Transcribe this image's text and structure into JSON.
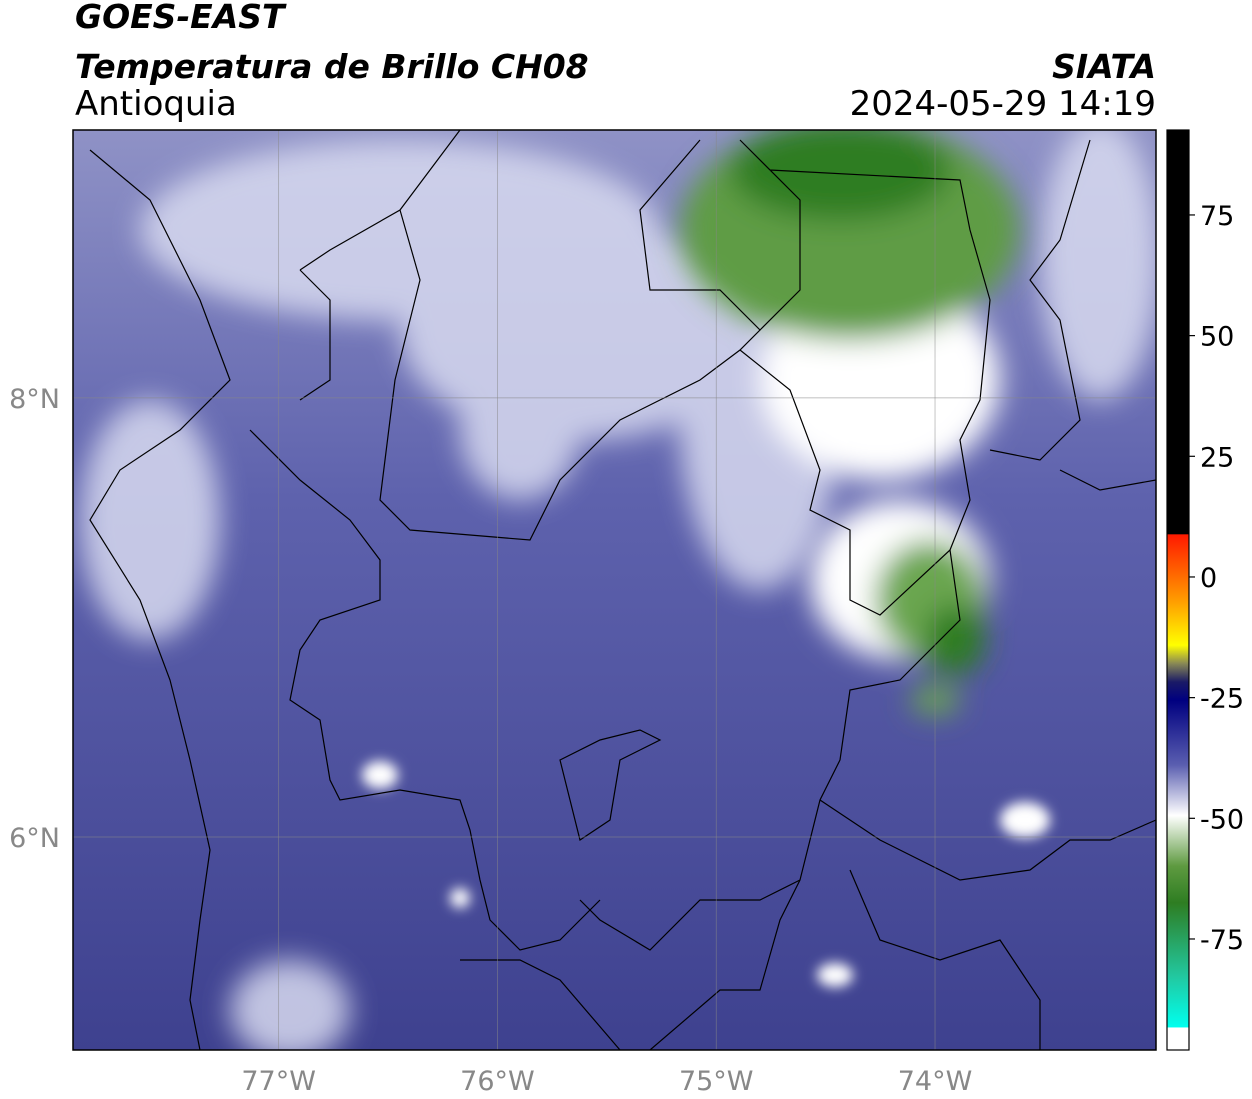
{
  "header": {
    "title": "GOES-EAST",
    "subtitle": "Temperatura de Brillo CH08",
    "region": "Antioquia",
    "source": "SIATA",
    "datetime": "2024-05-29 14:19"
  },
  "map": {
    "xlim": [
      -77.94,
      -72.99
    ],
    "ylim": [
      5.03,
      9.22
    ],
    "xticks": [
      {
        "value": -77,
        "label": "77°W"
      },
      {
        "value": -76,
        "label": "76°W"
      },
      {
        "value": -75,
        "label": "75°W"
      },
      {
        "value": -74,
        "label": "74°W"
      }
    ],
    "yticks": [
      {
        "value": 6,
        "label": "6°N"
      },
      {
        "value": 8,
        "label": "8°N"
      }
    ],
    "grid": true
  },
  "colorbar": {
    "lim": [
      -98,
      92.6
    ],
    "ticks": [
      75,
      50,
      25,
      0,
      -25,
      -50,
      -75
    ]
  }
}
